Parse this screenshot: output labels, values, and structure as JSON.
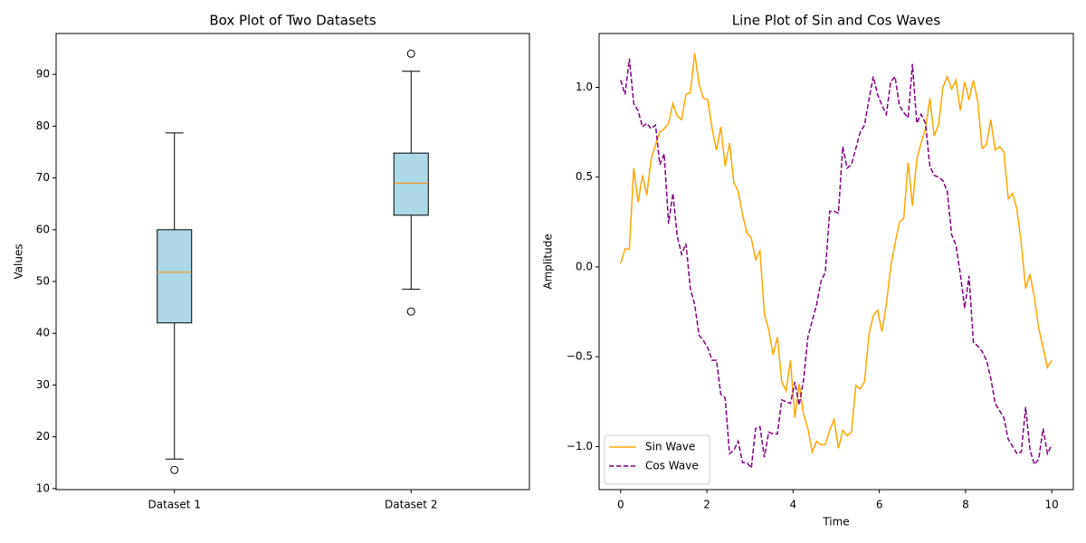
{
  "chart_data": [
    {
      "type": "box",
      "title": "Box Plot of Two Datasets",
      "ylabel": "Values",
      "categories": [
        "Dataset 1",
        "Dataset 2"
      ],
      "boxes": [
        {
          "low": 15.7,
          "q1": 42.0,
          "median": 51.8,
          "q3": 60.0,
          "high": 78.7,
          "outliers": [
            13.6
          ]
        },
        {
          "low": 48.5,
          "q1": 62.8,
          "median": 69.0,
          "q3": 74.8,
          "high": 90.6,
          "outliers": [
            94.0,
            44.2
          ]
        }
      ],
      "box_color": "#add8e6",
      "median_color": "#ff8c00",
      "xlim": [
        0.5,
        2.5
      ],
      "ylim": [
        9.8,
        97.9
      ],
      "yticks": [
        10,
        20,
        30,
        40,
        50,
        60,
        70,
        80,
        90
      ]
    },
    {
      "type": "line",
      "title": "Line Plot of Sin and Cos Waves",
      "xlabel": "Time",
      "ylabel": "Amplitude",
      "x": [
        0,
        0.101,
        0.202,
        0.303,
        0.404,
        0.505,
        0.606,
        0.707,
        0.808,
        0.909,
        1.01,
        1.111,
        1.212,
        1.313,
        1.414,
        1.515,
        1.616,
        1.717,
        1.818,
        1.919,
        2.02,
        2.121,
        2.222,
        2.323,
        2.424,
        2.525,
        2.626,
        2.727,
        2.828,
        2.929,
        3.03,
        3.131,
        3.232,
        3.333,
        3.434,
        3.535,
        3.636,
        3.737,
        3.838,
        3.939,
        4.04,
        4.141,
        4.242,
        4.343,
        4.444,
        4.545,
        4.646,
        4.747,
        4.848,
        4.949,
        5.051,
        5.152,
        5.253,
        5.354,
        5.455,
        5.556,
        5.657,
        5.758,
        5.859,
        5.96,
        6.061,
        6.162,
        6.263,
        6.364,
        6.465,
        6.566,
        6.667,
        6.768,
        6.869,
        6.97,
        7.071,
        7.172,
        7.273,
        7.374,
        7.475,
        7.576,
        7.677,
        7.778,
        7.879,
        7.98,
        8.081,
        8.182,
        8.283,
        8.384,
        8.485,
        8.586,
        8.687,
        8.788,
        8.889,
        8.99,
        9.091,
        9.192,
        9.293,
        9.394,
        9.495,
        9.596,
        9.697,
        9.798,
        9.899,
        10
      ],
      "series": [
        {
          "name": "Sin Wave",
          "color": "#ffa500",
          "linestyle": "solid",
          "values": [
            0.02,
            0.1,
            0.1,
            0.55,
            0.36,
            0.51,
            0.4,
            0.6,
            0.68,
            0.75,
            0.77,
            0.8,
            0.91,
            0.84,
            0.82,
            0.96,
            0.97,
            1.19,
            1.02,
            0.94,
            0.93,
            0.77,
            0.65,
            0.78,
            0.56,
            0.69,
            0.47,
            0.42,
            0.29,
            0.19,
            0.16,
            0.04,
            0.09,
            -0.26,
            -0.35,
            -0.49,
            -0.39,
            -0.64,
            -0.69,
            -0.52,
            -0.84,
            -0.65,
            -0.82,
            -0.9,
            -1.03,
            -0.97,
            -0.99,
            -0.99,
            -0.91,
            -0.85,
            -1.01,
            -0.91,
            -0.94,
            -0.92,
            -0.66,
            -0.68,
            -0.64,
            -0.38,
            -0.27,
            -0.24,
            -0.36,
            -0.21,
            0.0,
            0.13,
            0.25,
            0.27,
            0.58,
            0.34,
            0.6,
            0.69,
            0.77,
            0.94,
            0.73,
            0.79,
            1.0,
            1.06,
            0.99,
            1.04,
            0.87,
            1.03,
            0.93,
            1.04,
            0.92,
            0.66,
            0.68,
            0.82,
            0.65,
            0.67,
            0.64,
            0.38,
            0.41,
            0.32,
            0.13,
            -0.12,
            -0.04,
            -0.17,
            -0.34,
            -0.45,
            -0.56,
            -0.52
          ]
        },
        {
          "name": "Cos Wave",
          "color": "#800080",
          "linestyle": "dashed",
          "values": [
            1.04,
            0.96,
            1.16,
            0.91,
            0.87,
            0.78,
            0.8,
            0.77,
            0.79,
            0.57,
            0.63,
            0.24,
            0.41,
            0.17,
            0.07,
            0.13,
            -0.12,
            -0.21,
            -0.38,
            -0.41,
            -0.45,
            -0.52,
            -0.52,
            -0.71,
            -0.73,
            -1.04,
            -1.02,
            -0.97,
            -1.09,
            -1.09,
            -1.12,
            -0.9,
            -0.89,
            -1.06,
            -0.92,
            -0.93,
            -0.93,
            -0.74,
            -0.75,
            -0.76,
            -0.64,
            -0.77,
            -0.63,
            -0.39,
            -0.3,
            -0.21,
            -0.08,
            -0.03,
            0.31,
            0.31,
            0.3,
            0.67,
            0.55,
            0.57,
            0.66,
            0.75,
            0.79,
            0.93,
            1.06,
            0.96,
            0.9,
            0.85,
            1.03,
            1.06,
            0.9,
            0.86,
            0.83,
            1.13,
            0.8,
            0.85,
            0.8,
            0.56,
            0.51,
            0.5,
            0.48,
            0.42,
            0.18,
            0.12,
            -0.04,
            -0.23,
            -0.05,
            -0.42,
            -0.44,
            -0.47,
            -0.52,
            -0.62,
            -0.76,
            -0.8,
            -0.84,
            -0.96,
            -1.0,
            -1.04,
            -1.03,
            -0.78,
            -1.02,
            -1.1,
            -1.07,
            -0.9,
            -1.04,
            -0.99
          ]
        }
      ],
      "legend": "lower left",
      "xlim": [
        -0.5,
        10.5
      ],
      "ylim": [
        -1.24,
        1.3
      ],
      "xticks": [
        0,
        2,
        4,
        6,
        8,
        10
      ],
      "yticks": [
        {
          "value": -1.0,
          "label": "−1.0"
        },
        {
          "value": -0.5,
          "label": "−0.5"
        },
        {
          "value": 0.0,
          "label": "0.0"
        },
        {
          "value": 0.5,
          "label": "0.5"
        },
        {
          "value": 1.0,
          "label": "1.0"
        }
      ]
    }
  ]
}
